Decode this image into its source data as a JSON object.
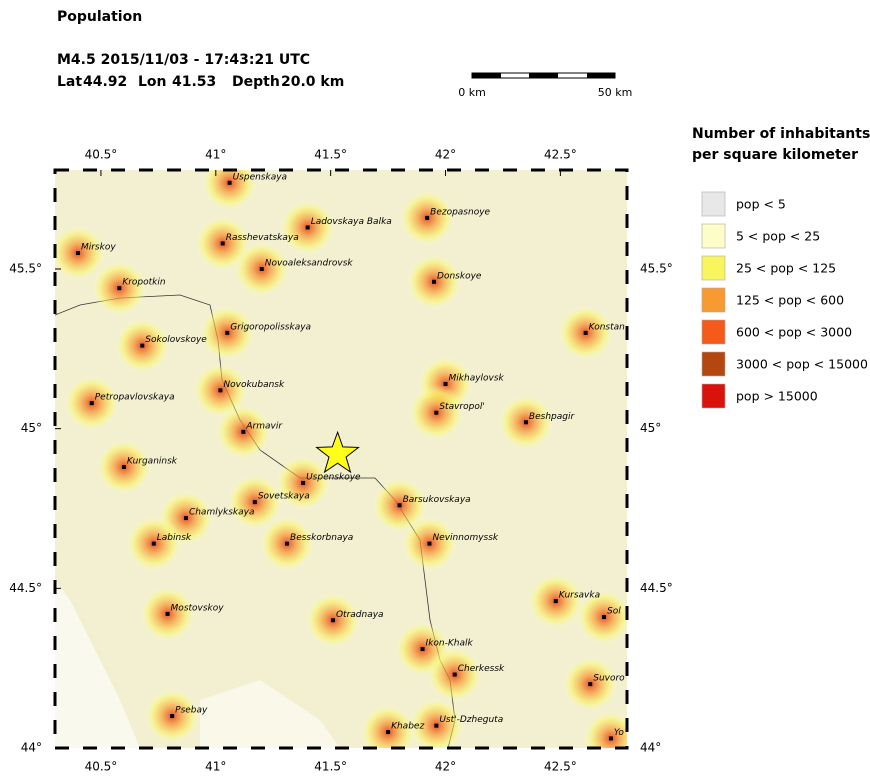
{
  "header": {
    "title": "Population",
    "event_line": "M4.5  2015/11/03 - 17:43:21 UTC",
    "lat_label": "Lat",
    "lat": 44.92,
    "lon_label": "Lon",
    "lon": 41.53,
    "depth_label": "Depth",
    "depth": "20.0 km"
  },
  "scale_bar": {
    "start_label": "0 km",
    "end_label": "50 km"
  },
  "map": {
    "xlim": [
      40.3,
      42.79
    ],
    "ylim": [
      44,
      45.81
    ],
    "xticks": [
      {
        "value": 40.5,
        "label": "40.5°"
      },
      {
        "value": 41,
        "label": "41°"
      },
      {
        "value": 41.5,
        "label": "41.5°"
      },
      {
        "value": 42,
        "label": "42°"
      },
      {
        "value": 42.5,
        "label": "42.5°"
      }
    ],
    "yticks": [
      {
        "value": 44,
        "label": "44°"
      },
      {
        "value": 44.5,
        "label": "44.5°"
      },
      {
        "value": 45,
        "label": "45°"
      },
      {
        "value": 45.5,
        "label": "45.5°"
      }
    ],
    "cities": [
      {
        "name": "Uspenskaya",
        "lon": 41.06,
        "lat": 45.77
      },
      {
        "name": "Ladovskaya Balka",
        "lon": 41.4,
        "lat": 45.63
      },
      {
        "name": "Bezopasnoye",
        "lon": 41.92,
        "lat": 45.66
      },
      {
        "name": "Mirskoy",
        "lon": 40.4,
        "lat": 45.55
      },
      {
        "name": "Rasshevatskaya",
        "lon": 41.03,
        "lat": 45.58
      },
      {
        "name": "Novoaleksandrovsk",
        "lon": 41.2,
        "lat": 45.5
      },
      {
        "name": "Donskoye",
        "lon": 41.95,
        "lat": 45.46
      },
      {
        "name": "Kropotkin",
        "lon": 40.58,
        "lat": 45.44
      },
      {
        "name": "Grigoropolisskaya",
        "lon": 41.05,
        "lat": 45.3
      },
      {
        "name": "Konstan",
        "lon": 42.61,
        "lat": 45.3
      },
      {
        "name": "Sokolovskoye",
        "lon": 40.68,
        "lat": 45.26
      },
      {
        "name": "Mikhaylovsk",
        "lon": 42.0,
        "lat": 45.14
      },
      {
        "name": "Novokubansk",
        "lon": 41.02,
        "lat": 45.12
      },
      {
        "name": "Petropavlovskaya",
        "lon": 40.46,
        "lat": 45.08
      },
      {
        "name": "Stavropol'",
        "lon": 41.96,
        "lat": 45.05
      },
      {
        "name": "Beshpagir",
        "lon": 42.35,
        "lat": 45.02
      },
      {
        "name": "Armavir",
        "lon": 41.12,
        "lat": 44.99
      },
      {
        "name": "Kurganinsk",
        "lon": 40.6,
        "lat": 44.88
      },
      {
        "name": "Uspenskoye",
        "lon": 41.38,
        "lat": 44.83
      },
      {
        "name": "Sovetskaya",
        "lon": 41.17,
        "lat": 44.77
      },
      {
        "name": "Barsukovskaya",
        "lon": 41.8,
        "lat": 44.76
      },
      {
        "name": "Chamlykskaya",
        "lon": 40.87,
        "lat": 44.72
      },
      {
        "name": "Labinsk",
        "lon": 40.73,
        "lat": 44.64
      },
      {
        "name": "Besskorbnaya",
        "lon": 41.31,
        "lat": 44.64
      },
      {
        "name": "Nevinnomyssk",
        "lon": 41.93,
        "lat": 44.64
      },
      {
        "name": "Kursavka",
        "lon": 42.48,
        "lat": 44.46
      },
      {
        "name": "Sol",
        "lon": 42.69,
        "lat": 44.41
      },
      {
        "name": "Mostovskoy",
        "lon": 40.79,
        "lat": 44.42
      },
      {
        "name": "Otradnaya",
        "lon": 41.51,
        "lat": 44.4
      },
      {
        "name": "Ikon-Khalk",
        "lon": 41.9,
        "lat": 44.31
      },
      {
        "name": "Cherkessk",
        "lon": 42.04,
        "lat": 44.23
      },
      {
        "name": "Suvoro",
        "lon": 42.63,
        "lat": 44.2
      },
      {
        "name": "Psebay",
        "lon": 40.81,
        "lat": 44.1
      },
      {
        "name": "Ust'-Dzheguta",
        "lon": 41.96,
        "lat": 44.07
      },
      {
        "name": "Khabez",
        "lon": 41.75,
        "lat": 44.05
      },
      {
        "name": "Yo",
        "lon": 42.72,
        "lat": 44.03
      }
    ]
  },
  "legend": {
    "title_line1": "Number of inhabitants",
    "title_line2": "per square kilometer",
    "items": [
      {
        "label": "pop < 5",
        "color": "#e8e8e8"
      },
      {
        "label": "5 < pop < 25",
        "color": "#fdfdc8"
      },
      {
        "label": "25 < pop < 125",
        "color": "#f8f55e"
      },
      {
        "label": "125 < pop < 600",
        "color": "#f89a32"
      },
      {
        "label": "600 < pop < 3000",
        "color": "#f65a1a"
      },
      {
        "label": "3000 < pop < 15000",
        "color": "#b3470f"
      },
      {
        "label": "pop > 15000",
        "color": "#d9120c"
      }
    ]
  }
}
